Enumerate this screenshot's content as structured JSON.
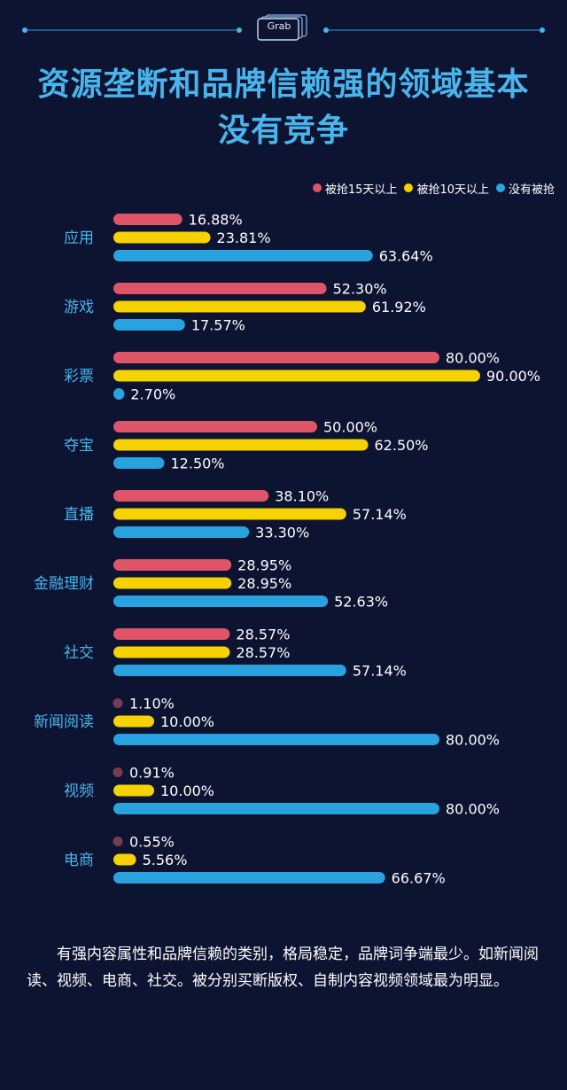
{
  "badge": {
    "text": "Grab"
  },
  "title_lines": [
    "资源垄断和品牌信赖强的领域基本",
    "没有竞争"
  ],
  "legend": [
    {
      "label": "被抢15天以上",
      "color": "#e05468"
    },
    {
      "label": "被抢10天以上",
      "color": "#f6d200"
    },
    {
      "label": "没有被抢",
      "color": "#29a3df"
    }
  ],
  "chart_data": {
    "type": "bar",
    "orientation": "horizontal",
    "legend_position": "top-right",
    "grid": false,
    "categories": [
      "应用",
      "游戏",
      "彩票",
      "夺宝",
      "直播",
      "金融理财",
      "社交",
      "新闻阅读",
      "视频",
      "电商"
    ],
    "series": [
      {
        "name": "被抢15天以上",
        "color": "#e05468",
        "values": [
          16.88,
          52.3,
          80.0,
          50.0,
          38.1,
          28.95,
          28.57,
          1.1,
          0.91,
          0.55
        ]
      },
      {
        "name": "被抢10天以上",
        "color": "#f6d200",
        "values": [
          23.81,
          61.92,
          90.0,
          62.5,
          57.14,
          28.95,
          28.57,
          10.0,
          10.0,
          5.56
        ]
      },
      {
        "name": "没有被抢",
        "color": "#29a3df",
        "values": [
          63.64,
          17.57,
          2.7,
          12.5,
          33.3,
          52.63,
          57.14,
          80.0,
          80.0,
          66.67
        ]
      }
    ],
    "labels": [
      [
        "16.88%",
        "23.81%",
        "63.64%"
      ],
      [
        "52.30%",
        "61.92%",
        "17.57%"
      ],
      [
        "80.00%",
        "90.00%",
        "2.70%"
      ],
      [
        "50.00%",
        "62.50%",
        "12.50%"
      ],
      [
        "38.10%",
        "57.14%",
        "33.30%"
      ],
      [
        "28.95%",
        "28.95%",
        "52.63%"
      ],
      [
        "28.57%",
        "28.57%",
        "57.14%"
      ],
      [
        "1.10%",
        "10.00%",
        "80.00%"
      ],
      [
        "0.91%",
        "10.00%",
        "80.00%"
      ],
      [
        "0.55%",
        "5.56%",
        "66.67%"
      ]
    ],
    "small_marker_color": "#7a3a52",
    "xlim": [
      0,
      100
    ]
  },
  "footnote": "有强内容属性和品牌信赖的类别，格局稳定，品牌词争端最少。如新闻阅读、视频、电商、社交。被分别买断版权、自制内容视频领域最为明显。"
}
